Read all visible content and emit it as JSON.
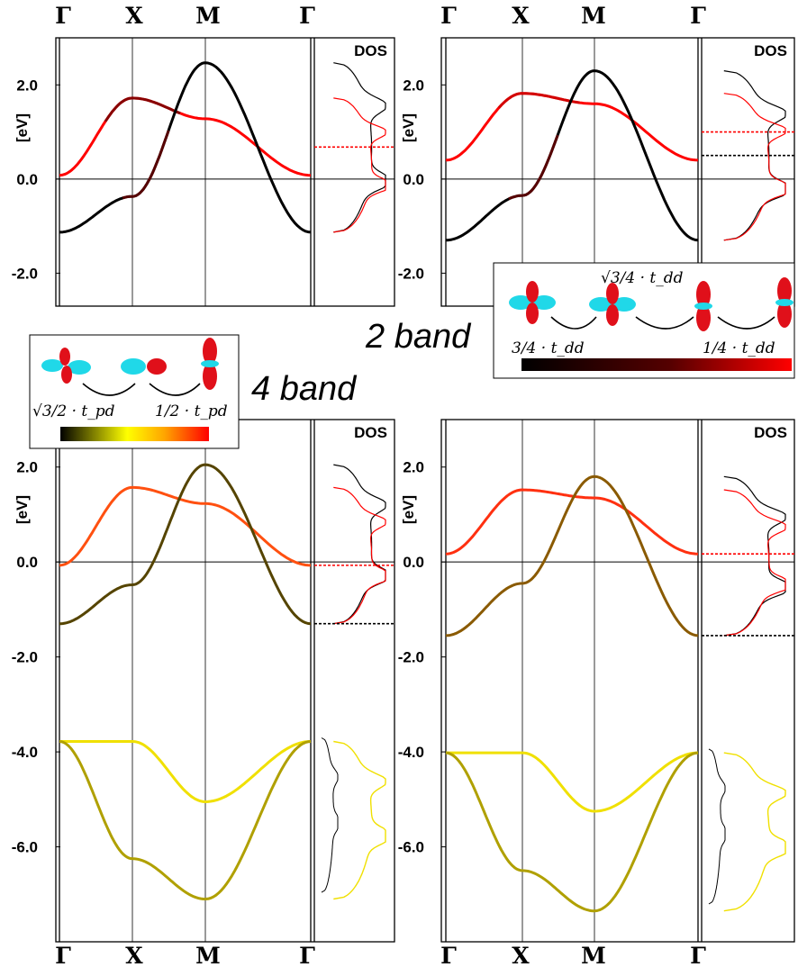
{
  "figure": {
    "label_2band": "2 band",
    "label_4band": "4 band",
    "dos_label": "DOS",
    "ylabel": "[eV]",
    "kpoints": [
      "Γ",
      "X",
      "M",
      "Γ"
    ]
  },
  "legend_2band": {
    "hopping": [
      "√3/4 · t_dd",
      "3/4 · t_dd",
      "1/4 · t_dd"
    ],
    "colorbar": [
      "#000000",
      "#ff0000"
    ],
    "orbital_colors": {
      "lobe_red": "#e0101a",
      "lobe_cyan": "#20d8e8"
    }
  },
  "legend_4band": {
    "hopping": [
      "√3/2 · t_pd",
      "1/2 · t_pd"
    ],
    "colorbar": [
      "#000000",
      "#ffff00",
      "#ff0000"
    ]
  },
  "chart_data": [
    {
      "type": "line",
      "panel": "2 band, top-left",
      "x": [
        "Γ",
        "X",
        "M",
        "Γ"
      ],
      "ylabel": "[eV]",
      "ylim": [
        -2.7,
        3.0
      ],
      "yticks": [
        "2.0",
        "0.0",
        "-2.0"
      ],
      "fermi_level": 0.0,
      "series": [
        {
          "values": [
            0.08,
            1.72,
            1.28,
            0.08
          ],
          "color_start": "#ff0000",
          "color_mid": "#550000"
        },
        {
          "values": [
            -1.13,
            -0.37,
            2.47,
            -1.13
          ],
          "color_start": "#000000",
          "color_mid": "#7a0000"
        }
      ],
      "dos_markers": [
        0.68
      ]
    },
    {
      "type": "line",
      "panel": "2 band, top-right",
      "x": [
        "Γ",
        "X",
        "M",
        "Γ"
      ],
      "ylabel": "[eV]",
      "ylim": [
        -2.7,
        3.0
      ],
      "yticks": [
        "2.0",
        "0.0",
        "-2.0"
      ],
      "fermi_level": 0.0,
      "series": [
        {
          "values": [
            0.4,
            1.82,
            1.6,
            0.4
          ],
          "color_start": "#ff0000",
          "color_mid": "#c00000"
        },
        {
          "values": [
            -1.3,
            -0.35,
            2.3,
            -1.3
          ],
          "color_start": "#000000",
          "color_mid": "#7a0000"
        }
      ],
      "dos_markers": [
        1.0,
        0.5
      ]
    },
    {
      "type": "line",
      "panel": "4 band, bottom-left",
      "x": [
        "Γ",
        "X",
        "M",
        "Γ"
      ],
      "ylabel": "[eV]",
      "ylim": [
        -8.0,
        3.0
      ],
      "yticks": [
        "2.0",
        "0.0",
        "-2.0",
        "-4.0",
        "-6.0"
      ],
      "fermi_level": 0.0,
      "series": [
        {
          "values": [
            -0.07,
            1.57,
            1.23,
            -0.07
          ],
          "color": "#ff5010"
        },
        {
          "values": [
            -1.3,
            -0.48,
            2.05,
            -1.3
          ],
          "color": "#554400"
        },
        {
          "values": [
            -3.78,
            -3.78,
            -5.05,
            -3.78
          ],
          "color": "#f0e000"
        },
        {
          "values": [
            -3.78,
            -6.25,
            -7.1,
            -3.78
          ],
          "color": "#b0a000"
        }
      ],
      "dos_markers": [
        -0.07,
        -1.3
      ]
    },
    {
      "type": "line",
      "panel": "4 band, bottom-right",
      "x": [
        "Γ",
        "X",
        "M",
        "Γ"
      ],
      "ylabel": "[eV]",
      "ylim": [
        -8.0,
        3.0
      ],
      "yticks": [
        "2.0",
        "0.0",
        "-2.0",
        "-4.0",
        "-6.0"
      ],
      "fermi_level": 0.0,
      "series": [
        {
          "values": [
            0.17,
            1.52,
            1.35,
            0.17
          ],
          "color": "#ff3010"
        },
        {
          "values": [
            -1.55,
            -0.45,
            1.8,
            -1.55
          ],
          "color": "#8a5a00"
        },
        {
          "values": [
            -4.02,
            -4.02,
            -5.25,
            -4.02
          ],
          "color": "#f0e000"
        },
        {
          "values": [
            -4.02,
            -6.5,
            -7.35,
            -4.02
          ],
          "color": "#b0a000"
        }
      ],
      "dos_markers": [
        0.17,
        -1.55
      ]
    }
  ]
}
